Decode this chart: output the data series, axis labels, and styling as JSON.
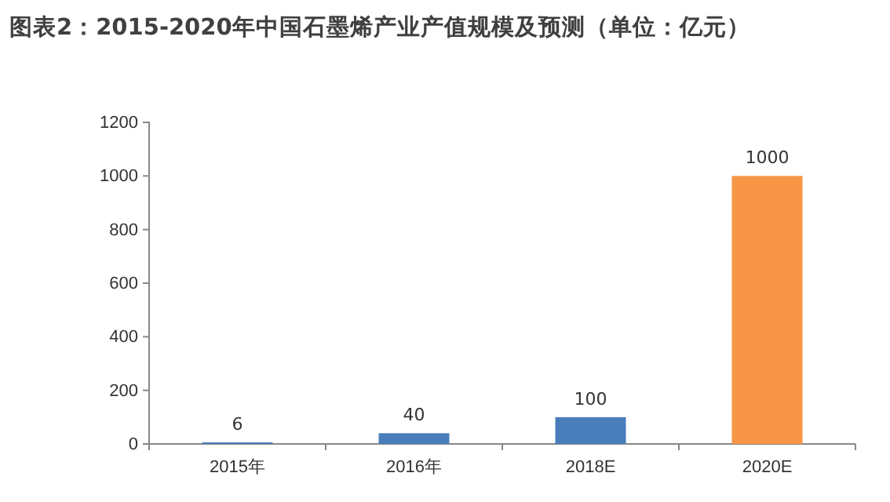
{
  "chart_data": {
    "type": "bar",
    "title": "图表2：2015-2020年中国石墨烯产业产值规模及预测（单位：亿元）",
    "categories": [
      "2015年",
      "2016年",
      "2018E",
      "2020E"
    ],
    "values": [
      6,
      40,
      100,
      1000
    ],
    "colors": [
      "#4a7ebb",
      "#4a7ebb",
      "#4a7ebb",
      "#f79646"
    ],
    "ylim": [
      0,
      1200
    ],
    "yticks": [
      0,
      200,
      400,
      600,
      800,
      1000,
      1200
    ],
    "data_labels": true
  }
}
